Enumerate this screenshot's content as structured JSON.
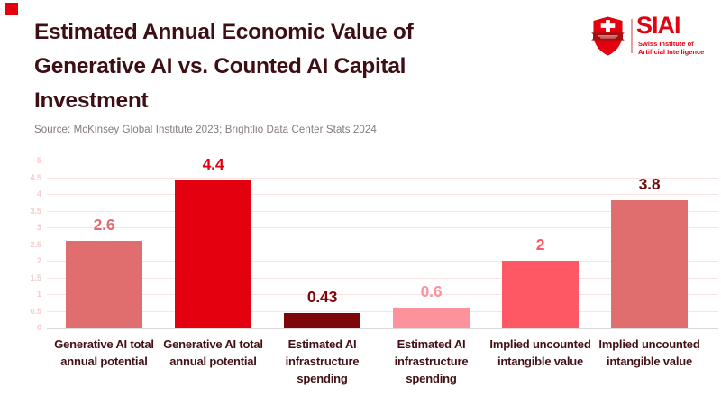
{
  "header": {
    "title_lines": [
      "Estimated Annual Economic Value of",
      "Generative AI vs. Counted AI Capital",
      "Investment"
    ],
    "title_color": "#3d0e13",
    "accent_square_color": "#e3000f",
    "source": "Source: McKinsey Global Institute 2023; Brightlio Data Center Stats 2024"
  },
  "logo": {
    "name": "SIAI",
    "subtitle_lines": [
      "Swiss Institute of",
      "Artificial Intelligence"
    ],
    "brand_color": "#e3000f",
    "banner_color": "#a50f0f",
    "divider_color": "#e5a0a0"
  },
  "chart_data": {
    "type": "bar",
    "title": "Estimated Annual Economic Value of Generative AI vs. Counted AI Capital Investment",
    "source": "Source: McKinsey Global Institute 2023; Brightlio Data Center Stats 2024",
    "categories": [
      "Generative AI total annual potential",
      "Generative AI total annual potential",
      "Estimated AI infrastructure spending",
      "Estimated AI infrastructure spending",
      "Implied uncounted intangible value",
      "Implied uncounted intangible value"
    ],
    "values": [
      2.6,
      4.4,
      0.43,
      0.6,
      2,
      3.8
    ],
    "value_labels": [
      "2.6",
      "4.4",
      "0.43",
      "0.6",
      "2",
      "3.8"
    ],
    "bar_colors": [
      "#e06e6e",
      "#e3000f",
      "#7d0708",
      "#fc929b",
      "#fd5864",
      "#e06e6e"
    ],
    "label_colors": [
      "#e06e6e",
      "#e3000f",
      "#7d0708",
      "#fc929b",
      "#fd5864",
      "#6b0b0e"
    ],
    "xlabel": "",
    "ylabel": "",
    "ylim": [
      0,
      5
    ],
    "yticks": [
      0,
      0.5,
      1,
      1.5,
      2,
      2.5,
      3,
      3.5,
      4,
      4.5,
      5
    ],
    "grid": true,
    "legend": false,
    "gridline_color": "#fbe3e3",
    "tick_label_color": "#f6caca",
    "category_label_color": "#421014"
  }
}
